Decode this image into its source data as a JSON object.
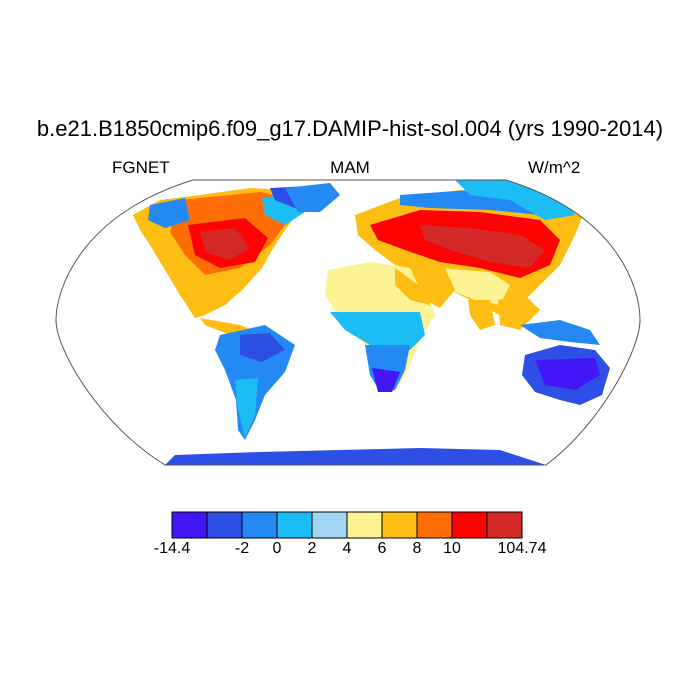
{
  "title": "b.e21.B1850cmip6.f09_g17.DAMIP-hist-sol.004 (yrs 1990-2014)",
  "subtitle_left": "FGNET",
  "subtitle_center": "MAM",
  "subtitle_right": "W/m^2",
  "colorbar": {
    "colors": [
      "#4316f5",
      "#2e4fe6",
      "#2589f4",
      "#1cbcf5",
      "#a1d5f1",
      "#fef392",
      "#fdbd13",
      "#fe6e04",
      "#fb0303",
      "#d32a27"
    ],
    "tick_labels": [
      "-14.4",
      "-2",
      "0",
      "2",
      "4",
      "6",
      "8",
      "10",
      "104.74"
    ]
  },
  "map": {
    "projection": "Robinson",
    "ocean_color": "#ffffff",
    "outline_color": "#555555"
  }
}
